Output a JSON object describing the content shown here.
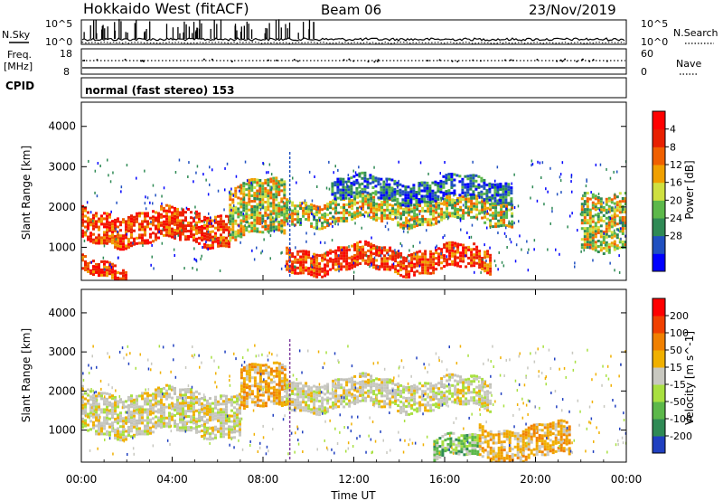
{
  "header": {
    "radar": "Hokkaido West (fitACF)",
    "beam": "Beam 06",
    "date": "23/Nov/2019"
  },
  "noise_panel": {
    "left_label": "N.Sky",
    "right_label": "N.Search",
    "ticks_left": [
      "10^5",
      "10^0"
    ],
    "ticks_right": [
      "10^5",
      "10^0"
    ]
  },
  "freq_panel": {
    "label_line1": "Freq.",
    "label_line2": "[MHz]",
    "ticks_left": [
      "18",
      "8"
    ],
    "right_label": "Nave",
    "ticks_right": [
      "60",
      "0"
    ]
  },
  "cpid": {
    "label": "CPID",
    "value": "normal (fast stereo) 153"
  },
  "time_axis": {
    "label": "Time UT",
    "ticks": [
      "00:00",
      "04:00",
      "08:00",
      "12:00",
      "16:00",
      "20:00",
      "00:00"
    ]
  },
  "chart_data": [
    {
      "type": "heatmap",
      "panel": "power",
      "ylabel": "Slant Range [km]",
      "yticks": [
        1000,
        2000,
        3000,
        4000
      ],
      "ylim": [
        180,
        4600
      ],
      "xlim_hours": [
        0,
        24
      ],
      "colorbar_label": "Power [dB]",
      "colorbar_ticks": [
        "4",
        "8",
        "12",
        "16",
        "20",
        "24",
        "28"
      ],
      "colorbar_colors": [
        "#0000ff",
        "#2050c0",
        "#2f8a55",
        "#5cb84a",
        "#cfe040",
        "#f0a000",
        "#f06000",
        "#e82000",
        "#ff0000"
      ],
      "bands": [
        {
          "t0": 0.0,
          "t1": 6.5,
          "r0": 1100,
          "r1": 1900,
          "level": "high"
        },
        {
          "t0": 0.0,
          "t1": 2.0,
          "r0": 300,
          "r1": 700,
          "level": "high"
        },
        {
          "t0": 6.5,
          "t1": 9.0,
          "r0": 1300,
          "r1": 2600,
          "level": "mid"
        },
        {
          "t0": 9.0,
          "t1": 18.0,
          "r0": 400,
          "r1": 1000,
          "level": "high"
        },
        {
          "t0": 9.0,
          "t1": 19.0,
          "r0": 1600,
          "r1": 2200,
          "level": "mid"
        },
        {
          "t0": 11.0,
          "t1": 19.0,
          "r0": 2200,
          "r1": 2700,
          "level": "low"
        },
        {
          "t0": 22.0,
          "t1": 24.0,
          "r0": 1000,
          "r1": 2400,
          "level": "mid"
        }
      ]
    },
    {
      "type": "heatmap",
      "panel": "velocity",
      "ylabel": "Slant Range [km]",
      "yticks": [
        1000,
        2000,
        3000,
        4000
      ],
      "ylim": [
        180,
        4600
      ],
      "xlim_hours": [
        0,
        24
      ],
      "colorbar_label": "Velocity [m s^-1]",
      "colorbar_ticks": [
        "200",
        "100",
        "50",
        "15",
        "-15",
        "-50",
        "-100",
        "-200"
      ],
      "colorbar_colors": [
        "#2040c0",
        "#2f8a55",
        "#5cb84a",
        "#a8e040",
        "#c8c8c0",
        "#f0b000",
        "#f08000",
        "#f04000",
        "#ff0000"
      ],
      "bands": [
        {
          "t0": 0.0,
          "t1": 7.0,
          "r0": 900,
          "r1": 2000,
          "level": "neutral"
        },
        {
          "t0": 7.0,
          "t1": 9.0,
          "r0": 1500,
          "r1": 2600,
          "level": "away"
        },
        {
          "t0": 9.0,
          "t1": 18.0,
          "r0": 1600,
          "r1": 2300,
          "level": "neutral"
        },
        {
          "t0": 15.5,
          "t1": 17.5,
          "r0": 300,
          "r1": 800,
          "level": "toward"
        },
        {
          "t0": 17.5,
          "t1": 21.5,
          "r0": 300,
          "r1": 1100,
          "level": "away"
        }
      ]
    }
  ]
}
